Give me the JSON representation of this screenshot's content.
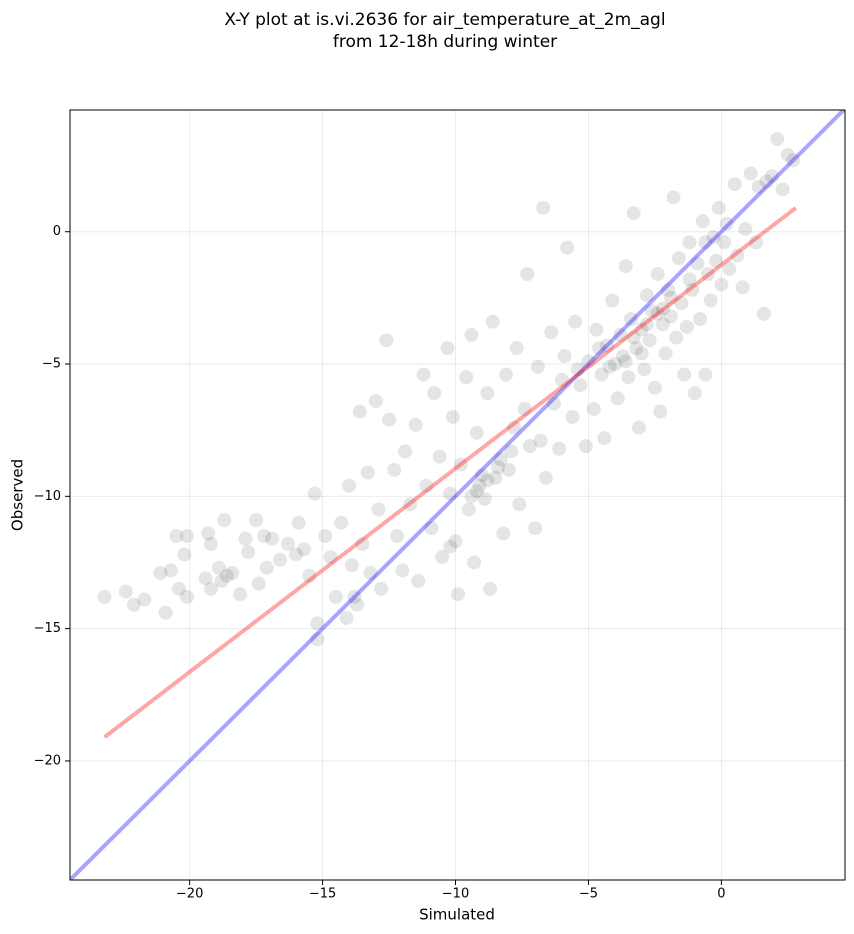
{
  "chart_data": {
    "type": "scatter",
    "title": [
      "X-Y plot at is.vi.2636 for air_temperature_at_2m_agl",
      "from 12-18h during winter"
    ],
    "x_label": "Simulated",
    "y_label": "Observed",
    "xlim": [
      -24.5,
      4.65
    ],
    "ylim": [
      -24.5,
      4.6
    ],
    "xticks": [
      {
        "value": -20,
        "label": "−20"
      },
      {
        "value": -15,
        "label": "−15"
      },
      {
        "value": -10,
        "label": "−10"
      },
      {
        "value": -5,
        "label": "−5"
      },
      0
    ],
    "yticks": [
      {
        "value": -20,
        "label": "−20"
      },
      {
        "value": -15,
        "label": "−15"
      },
      {
        "value": -10,
        "label": "−10"
      },
      {
        "value": -5,
        "label": "−5"
      },
      0
    ],
    "grid": true,
    "series": [
      {
        "type": "scatter",
        "color": "#000000",
        "alpha": 0.1,
        "x": [
          -23.2,
          -22.4,
          -22.1,
          -21.7,
          -21.1,
          -20.9,
          -20.7,
          -20.5,
          -20.4,
          -20.2,
          -20.1,
          -20.1,
          -19.4,
          -19.3,
          -19.2,
          -19.2,
          -18.9,
          -18.8,
          -18.7,
          -18.6,
          -18.4,
          -18.1,
          -17.9,
          -17.8,
          -17.5,
          -17.4,
          -17.2,
          -17.1,
          -16.9,
          -16.6,
          -16.3,
          -16.0,
          -15.9,
          -15.7,
          -15.5,
          -15.3,
          -15.2,
          -15.2,
          -14.9,
          -14.7,
          -14.5,
          -14.3,
          -14.1,
          -14.0,
          -13.9,
          -13.8,
          -13.7,
          -13.6,
          -13.5,
          -13.3,
          -13.2,
          -13.0,
          -12.9,
          -12.8,
          -12.6,
          -12.5,
          -12.3,
          -12.2,
          -12.0,
          -11.9,
          -11.7,
          -11.5,
          -11.4,
          -11.2,
          -11.1,
          -10.9,
          -10.8,
          -10.6,
          -10.5,
          -10.3,
          -10.2,
          -10.1,
          -10.0,
          -9.9,
          -9.8,
          -9.6,
          -9.5,
          -9.4,
          -9.3,
          -9.2,
          -9.1,
          -9.0,
          -8.9,
          -8.8,
          -8.7,
          -8.6,
          -8.5,
          -8.3,
          -8.2,
          -8.1,
          -8.0,
          -7.8,
          -7.7,
          -7.6,
          -7.4,
          -7.3,
          -7.2,
          -7.0,
          -6.9,
          -6.8,
          -6.7,
          -6.6,
          -6.4,
          -6.3,
          -6.1,
          -5.9,
          -5.8,
          -5.6,
          -5.5,
          -5.3,
          -5.1,
          -5.0,
          -4.8,
          -4.7,
          -4.5,
          -4.4,
          -4.3,
          -4.1,
          -4.0,
          -3.9,
          -3.8,
          -3.7,
          -3.6,
          -3.5,
          -3.4,
          -3.3,
          -3.2,
          -3.1,
          -3.0,
          -2.9,
          -2.8,
          -2.7,
          -2.6,
          -2.5,
          -2.4,
          -2.3,
          -2.2,
          -2.1,
          -2.0,
          -1.9,
          -1.8,
          -1.7,
          -1.6,
          -1.5,
          -1.4,
          -1.3,
          -1.2,
          -1.1,
          -1.0,
          -0.9,
          -0.8,
          -0.7,
          -0.6,
          -0.5,
          -0.4,
          -0.3,
          -0.2,
          -0.1,
          0.0,
          0.1,
          0.3,
          0.5,
          0.6,
          0.8,
          0.9,
          1.1,
          1.3,
          1.4,
          1.6,
          1.7,
          1.9,
          2.1,
          2.3,
          2.5,
          2.7,
          -3.3,
          -3.0,
          -2.8,
          -3.6,
          -4.2,
          -2.4,
          -1.9,
          -1.2,
          -0.6,
          0.2,
          -9.2,
          -8.8,
          -9.4,
          -8.4,
          -10.2,
          -7.9,
          -6.0,
          -5.4,
          -4.6,
          -2.2
        ],
        "values": [
          -13.8,
          -13.6,
          -14.1,
          -13.9,
          -12.9,
          -14.4,
          -12.8,
          -11.5,
          -13.5,
          -12.2,
          -13.8,
          -11.5,
          -13.1,
          -11.4,
          -11.8,
          -13.5,
          -12.7,
          -13.2,
          -10.9,
          -13.0,
          -12.9,
          -13.7,
          -11.6,
          -12.1,
          -10.9,
          -13.3,
          -11.5,
          -12.7,
          -11.6,
          -12.4,
          -11.8,
          -12.2,
          -11.0,
          -12.0,
          -13.0,
          -9.9,
          -14.8,
          -15.4,
          -11.5,
          -12.3,
          -13.8,
          -11.0,
          -14.6,
          -9.6,
          -12.6,
          -13.8,
          -14.1,
          -6.8,
          -11.8,
          -9.1,
          -12.9,
          -6.4,
          -10.5,
          -13.5,
          -4.1,
          -7.1,
          -9.0,
          -11.5,
          -12.8,
          -8.3,
          -10.3,
          -7.3,
          -13.2,
          -5.4,
          -9.6,
          -11.2,
          -6.1,
          -8.5,
          -12.3,
          -4.4,
          -9.9,
          -7.0,
          -11.7,
          -13.7,
          -8.8,
          -5.5,
          -10.5,
          -3.9,
          -12.5,
          -7.6,
          -9.6,
          -9.2,
          -10.1,
          -6.1,
          -13.5,
          -3.4,
          -9.3,
          -8.6,
          -11.4,
          -5.4,
          -9.0,
          -7.4,
          -4.4,
          -10.3,
          -6.7,
          -1.6,
          -8.1,
          -11.2,
          -5.1,
          -7.9,
          0.9,
          -9.3,
          -3.8,
          -6.5,
          -8.2,
          -4.7,
          -0.6,
          -7.0,
          -3.4,
          -5.8,
          -8.1,
          -4.9,
          -6.7,
          -3.7,
          -5.4,
          -7.8,
          -4.3,
          -2.6,
          -5.0,
          -6.3,
          -3.9,
          -4.7,
          -1.3,
          -5.5,
          -3.3,
          0.7,
          -4.4,
          -7.4,
          -3.7,
          -5.2,
          -2.4,
          -4.1,
          -3.0,
          -5.9,
          -1.6,
          -6.8,
          -3.5,
          -4.6,
          -2.2,
          -3.2,
          1.3,
          -4.0,
          -1.0,
          -2.7,
          -5.4,
          -3.6,
          -0.4,
          -2.2,
          -6.1,
          -1.2,
          -3.3,
          0.4,
          -5.4,
          -1.6,
          -2.6,
          -0.2,
          -1.1,
          0.9,
          -2.0,
          -0.4,
          -1.4,
          1.8,
          -0.9,
          -2.1,
          0.1,
          2.2,
          -0.4,
          1.7,
          -3.1,
          1.9,
          2.1,
          3.5,
          1.6,
          2.9,
          2.7,
          -4.0,
          -4.6,
          -3.5,
          -4.9,
          -5.1,
          -3.1,
          -2.5,
          -1.8,
          -0.4,
          0.3,
          -9.8,
          -9.4,
          -10.0,
          -8.9,
          -11.9,
          -8.3,
          -5.6,
          -5.2,
          -4.4,
          -2.9
        ]
      },
      {
        "type": "line",
        "color": "#0000ff",
        "alpha": 0.35,
        "x": [
          -24.5,
          4.65
        ],
        "values": [
          -24.5,
          4.65
        ]
      },
      {
        "type": "line",
        "color": "#ff0000",
        "alpha": 0.35,
        "x": [
          -23.2,
          2.8
        ],
        "values": [
          -19.1,
          0.9
        ]
      }
    ]
  }
}
